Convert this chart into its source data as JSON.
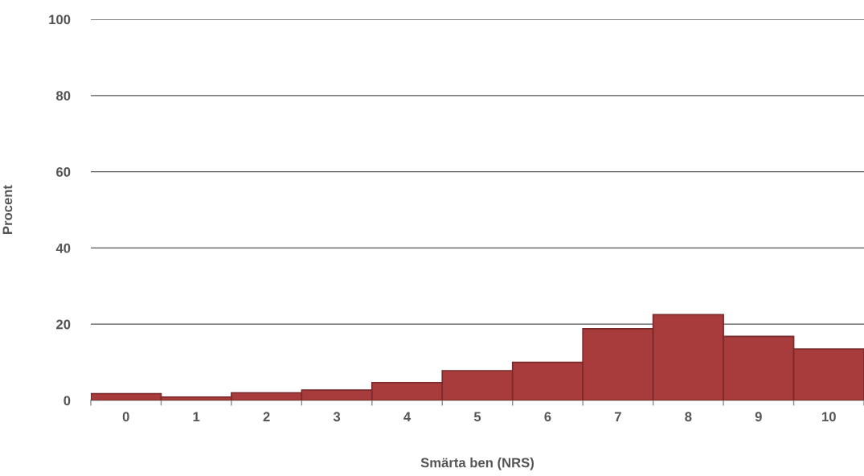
{
  "chart_data": {
    "type": "bar",
    "xlabel": "Smärta ben (NRS)",
    "ylabel": "Procent",
    "categories": [
      "0",
      "1",
      "2",
      "3",
      "4",
      "5",
      "6",
      "7",
      "8",
      "9",
      "10"
    ],
    "values": [
      1.8,
      0.9,
      2.0,
      2.7,
      4.7,
      7.8,
      10.0,
      18.8,
      22.5,
      16.8,
      13.5
    ],
    "color": "#a83c3c",
    "ylim": [
      0,
      100
    ],
    "yticks": [
      0,
      20,
      40,
      60,
      80,
      100
    ],
    "grid": "y",
    "legend": false
  }
}
